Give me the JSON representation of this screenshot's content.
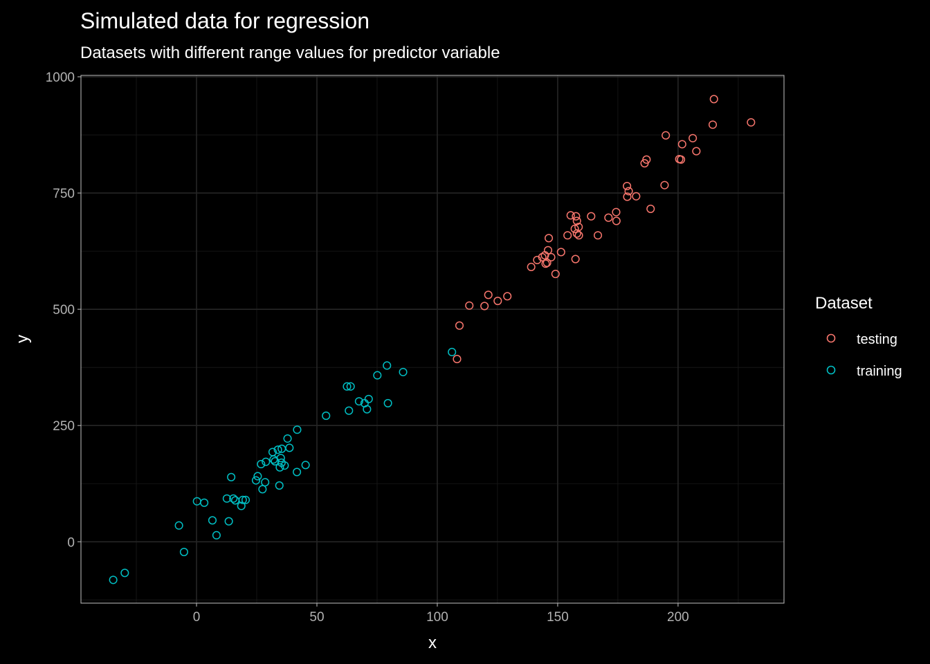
{
  "chart_data": {
    "type": "scatter",
    "title": "Simulated data for regression",
    "subtitle": "Datasets with different range values for predictor variable",
    "xlabel": "x",
    "ylabel": "y",
    "xlim": [
      -48,
      244
    ],
    "ylim": [
      -132,
      1003
    ],
    "xticks": [
      0,
      50,
      100,
      150,
      200
    ],
    "yticks": [
      0,
      250,
      500,
      750,
      1000
    ],
    "xtick_labels": [
      "0",
      "50",
      "100",
      "150",
      "200"
    ],
    "ytick_labels": [
      "0",
      "250",
      "500",
      "750",
      "1000"
    ],
    "grid": true,
    "legend": {
      "title": "Dataset",
      "position": "right"
    },
    "series": [
      {
        "name": "testing",
        "color": "#F8766D",
        "points": [
          [
            108.2,
            393
          ],
          [
            109.2,
            465
          ],
          [
            113.3,
            508
          ],
          [
            119.6,
            507
          ],
          [
            121.2,
            531
          ],
          [
            125.1,
            518
          ],
          [
            129.1,
            528
          ],
          [
            139.0,
            591
          ],
          [
            141.5,
            606
          ],
          [
            143.6,
            612
          ],
          [
            144.7,
            616
          ],
          [
            145.0,
            598
          ],
          [
            145.6,
            600
          ],
          [
            146.0,
            627
          ],
          [
            146.3,
            653
          ],
          [
            147.3,
            612
          ],
          [
            149.1,
            576
          ],
          [
            151.4,
            623
          ],
          [
            154.1,
            659
          ],
          [
            155.4,
            702
          ],
          [
            157.1,
            673
          ],
          [
            157.4,
            608
          ],
          [
            157.6,
            700
          ],
          [
            158.0,
            690
          ],
          [
            158.0,
            663
          ],
          [
            158.7,
            677
          ],
          [
            158.8,
            659
          ],
          [
            163.9,
            700
          ],
          [
            166.7,
            659
          ],
          [
            171.1,
            697
          ],
          [
            174.4,
            690
          ],
          [
            174.3,
            709
          ],
          [
            178.8,
            765
          ],
          [
            178.9,
            742
          ],
          [
            179.5,
            754
          ],
          [
            182.6,
            743
          ],
          [
            186.1,
            814
          ],
          [
            186.9,
            822
          ],
          [
            188.6,
            716
          ],
          [
            194.4,
            767
          ],
          [
            194.9,
            874
          ],
          [
            200.5,
            823
          ],
          [
            201.2,
            822
          ],
          [
            201.7,
            855
          ],
          [
            206.1,
            868
          ],
          [
            207.6,
            840
          ],
          [
            214.4,
            897
          ],
          [
            214.9,
            952
          ],
          [
            230.3,
            902
          ]
        ]
      },
      {
        "name": "training",
        "color": "#00BFC4",
        "points": [
          [
            -34.6,
            -82
          ],
          [
            -29.8,
            -67
          ],
          [
            -7.3,
            35
          ],
          [
            -5.2,
            -22
          ],
          [
            0.2,
            87
          ],
          [
            3.2,
            84
          ],
          [
            6.6,
            46
          ],
          [
            8.3,
            14
          ],
          [
            12.6,
            93
          ],
          [
            13.4,
            44
          ],
          [
            14.4,
            139
          ],
          [
            15.3,
            93
          ],
          [
            16.1,
            89
          ],
          [
            18.6,
            77
          ],
          [
            19.2,
            90
          ],
          [
            20.4,
            90
          ],
          [
            24.7,
            132
          ],
          [
            25.4,
            141
          ],
          [
            26.8,
            167
          ],
          [
            27.4,
            113
          ],
          [
            28.5,
            128
          ],
          [
            28.8,
            172
          ],
          [
            31.6,
            193
          ],
          [
            32.0,
            177
          ],
          [
            32.6,
            173
          ],
          [
            33.8,
            198
          ],
          [
            34.4,
            121
          ],
          [
            34.6,
            160
          ],
          [
            35.0,
            180
          ],
          [
            35.3,
            170
          ],
          [
            35.4,
            200
          ],
          [
            36.6,
            164
          ],
          [
            37.8,
            222
          ],
          [
            38.6,
            202
          ],
          [
            41.8,
            241
          ],
          [
            41.7,
            150
          ],
          [
            45.3,
            165
          ],
          [
            53.8,
            271
          ],
          [
            62.5,
            334
          ],
          [
            63.3,
            282
          ],
          [
            64.0,
            334
          ],
          [
            67.5,
            302
          ],
          [
            69.8,
            298
          ],
          [
            70.8,
            285
          ],
          [
            71.5,
            307
          ],
          [
            75.1,
            358
          ],
          [
            79.1,
            379
          ],
          [
            79.5,
            298
          ],
          [
            85.8,
            365
          ],
          [
            106.1,
            408
          ]
        ]
      }
    ]
  }
}
